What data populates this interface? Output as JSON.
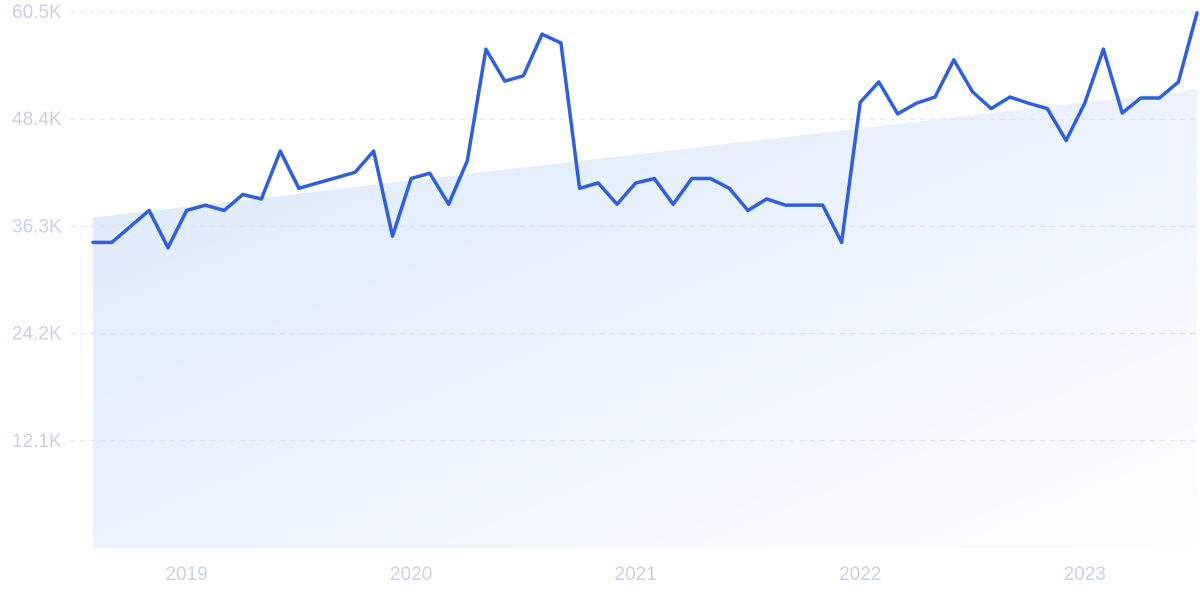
{
  "chart_data": {
    "type": "line",
    "color": "#2f5fdc",
    "x": [
      2018.583,
      2018.667,
      2018.75,
      2018.833,
      2018.917,
      2019,
      2019.083,
      2019.167,
      2019.25,
      2019.333,
      2019.417,
      2019.5,
      2019.583,
      2019.667,
      2019.75,
      2019.833,
      2019.917,
      2020,
      2020.083,
      2020.167,
      2020.25,
      2020.333,
      2020.417,
      2020.5,
      2020.583,
      2020.667,
      2020.75,
      2020.833,
      2020.917,
      2021,
      2021.083,
      2021.167,
      2021.25,
      2021.333,
      2021.417,
      2021.5,
      2021.583,
      2021.667,
      2021.75,
      2021.833,
      2021.917,
      2022,
      2022.083,
      2022.167,
      2022.25,
      2022.333,
      2022.417,
      2022.5,
      2022.583,
      2022.667,
      2022.75,
      2022.833,
      2022.917,
      2023,
      2023.083,
      2023.167,
      2023.25,
      2023.333,
      2023.417,
      2023.5
    ],
    "values": [
      34500,
      34500,
      36300,
      38100,
      33900,
      38100,
      38700,
      38100,
      39900,
      39400,
      44800,
      40600,
      41200,
      41800,
      42400,
      44800,
      35200,
      41700,
      42300,
      38800,
      43700,
      56300,
      52700,
      53300,
      58000,
      57000,
      40600,
      41200,
      38800,
      41200,
      41700,
      38800,
      41700,
      41700,
      40600,
      38100,
      39400,
      38700,
      38700,
      38700,
      34500,
      50300,
      52600,
      49000,
      50200,
      50900,
      55100,
      51500,
      49600,
      50900,
      50200,
      49600,
      46000,
      50200,
      56300,
      49100,
      50800,
      50800,
      52600,
      60400
    ],
    "trend": {
      "x": [
        2018.583,
        2023.5
      ],
      "values": [
        37300,
        51800
      ],
      "color": "#dbe8fb"
    },
    "xlim": [
      2018.583,
      2023.5
    ],
    "ylim": [
      0,
      60500
    ],
    "xticks": [
      2019,
      2020,
      2021,
      2022,
      2023
    ],
    "yticks": [
      {
        "value": 12100,
        "label": "12.1K"
      },
      {
        "value": 24200,
        "label": "24.2K"
      },
      {
        "value": 36300,
        "label": "36.3K"
      },
      {
        "value": 48400,
        "label": "48.4K"
      },
      {
        "value": 60500,
        "label": "60.5K"
      }
    ],
    "grid": true
  }
}
